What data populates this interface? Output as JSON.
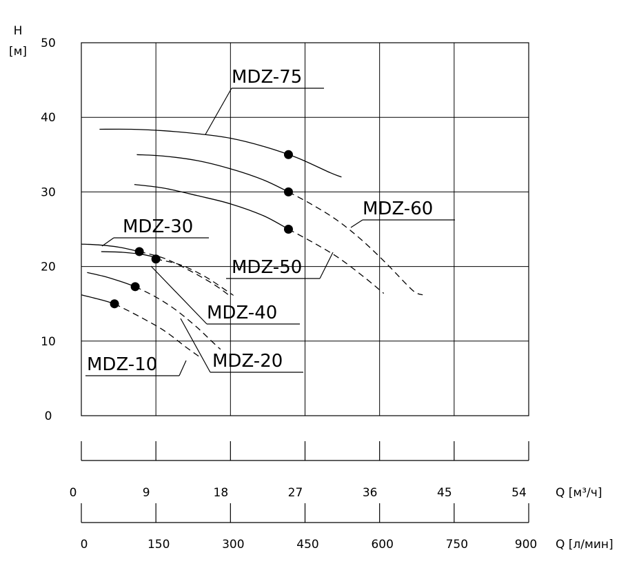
{
  "chart_data": {
    "type": "line",
    "ylabel": "H",
    "yunit": "[м]",
    "ylim": [
      0,
      50
    ],
    "yticks": [
      0,
      10,
      20,
      30,
      40,
      50
    ],
    "xlim": [
      0,
      54
    ],
    "x1_label": "Q [м³/ч]",
    "x1_ticks": [
      "0",
      "9",
      "18",
      "27",
      "36",
      "45",
      "54"
    ],
    "x2_label": "Q [л/мин]",
    "x2_ticks": [
      "0",
      "150",
      "300",
      "450",
      "600",
      "750",
      "900"
    ],
    "grid": true,
    "series": [
      {
        "name": "MDZ-75",
        "solid": [
          [
            2.2,
            38.4
          ],
          [
            6,
            38.4
          ],
          [
            10,
            38.2
          ],
          [
            14,
            37.8
          ],
          [
            18,
            37.2
          ],
          [
            22,
            36.1
          ],
          [
            26,
            34.6
          ],
          [
            30,
            32.6
          ],
          [
            31.4,
            32.0
          ]
        ],
        "dashed": [],
        "point": [
          25,
          35
        ]
      },
      {
        "name": "MDZ-60",
        "solid": [
          [
            6.7,
            35
          ],
          [
            10,
            34.8
          ],
          [
            14,
            34.2
          ],
          [
            18,
            33.1
          ],
          [
            22,
            31.6
          ],
          [
            25,
            30
          ]
        ],
        "dashed": [
          [
            25,
            30
          ],
          [
            28,
            28.2
          ],
          [
            31,
            26.1
          ],
          [
            34,
            23.4
          ],
          [
            37,
            20.2
          ],
          [
            40,
            16.8
          ],
          [
            41.2,
            16.2
          ]
        ],
        "point": [
          25,
          30
        ]
      },
      {
        "name": "MDZ-50",
        "solid": [
          [
            6.4,
            31
          ],
          [
            10,
            30.5
          ],
          [
            14,
            29.5
          ],
          [
            18,
            28.4
          ],
          [
            22,
            26.8
          ],
          [
            25,
            25
          ]
        ],
        "dashed": [
          [
            25,
            25
          ],
          [
            28,
            23.2
          ],
          [
            31,
            21.2
          ],
          [
            34,
            18.7
          ],
          [
            36.5,
            16.4
          ]
        ],
        "point": [
          25,
          25
        ]
      },
      {
        "name": "MDZ-40",
        "solid": [
          [
            2.4,
            22
          ],
          [
            5,
            21.9
          ],
          [
            7.5,
            21.6
          ],
          [
            9,
            21.2
          ]
        ],
        "dashed": [
          [
            9,
            21
          ],
          [
            12,
            20.2
          ],
          [
            15,
            18.6
          ],
          [
            18,
            16.4
          ],
          [
            18.3,
            16.2
          ]
        ],
        "point": [
          9,
          21
        ]
      },
      {
        "name": "MDZ-30",
        "solid": [
          [
            0,
            23
          ],
          [
            2,
            22.9
          ],
          [
            4.5,
            22.6
          ],
          [
            7,
            22
          ]
        ],
        "dashed": [
          [
            7,
            22
          ],
          [
            10,
            21.1
          ],
          [
            13,
            19.5
          ],
          [
            16,
            17.6
          ],
          [
            18,
            16.0
          ]
        ],
        "point": [
          7,
          22
        ]
      },
      {
        "name": "MDZ-20",
        "solid": [
          [
            0.7,
            19.2
          ],
          [
            3,
            18.6
          ],
          [
            5,
            17.9
          ],
          [
            6.5,
            17.3
          ]
        ],
        "dashed": [
          [
            6.5,
            17.3
          ],
          [
            9,
            15.9
          ],
          [
            11.5,
            14.1
          ],
          [
            14,
            11.8
          ],
          [
            16,
            9.7
          ],
          [
            16.8,
            8.9
          ]
        ],
        "point": [
          6.5,
          17.3
        ]
      },
      {
        "name": "MDZ-10",
        "solid": [
          [
            0,
            16.2
          ],
          [
            2.5,
            15.5
          ],
          [
            4,
            15
          ]
        ],
        "dashed": [
          [
            4,
            15
          ],
          [
            7,
            13.3
          ],
          [
            10,
            11.4
          ],
          [
            12.5,
            9.3
          ],
          [
            14,
            8.1
          ],
          [
            14.3,
            7.9
          ]
        ],
        "point": [
          4,
          15
        ]
      }
    ]
  }
}
